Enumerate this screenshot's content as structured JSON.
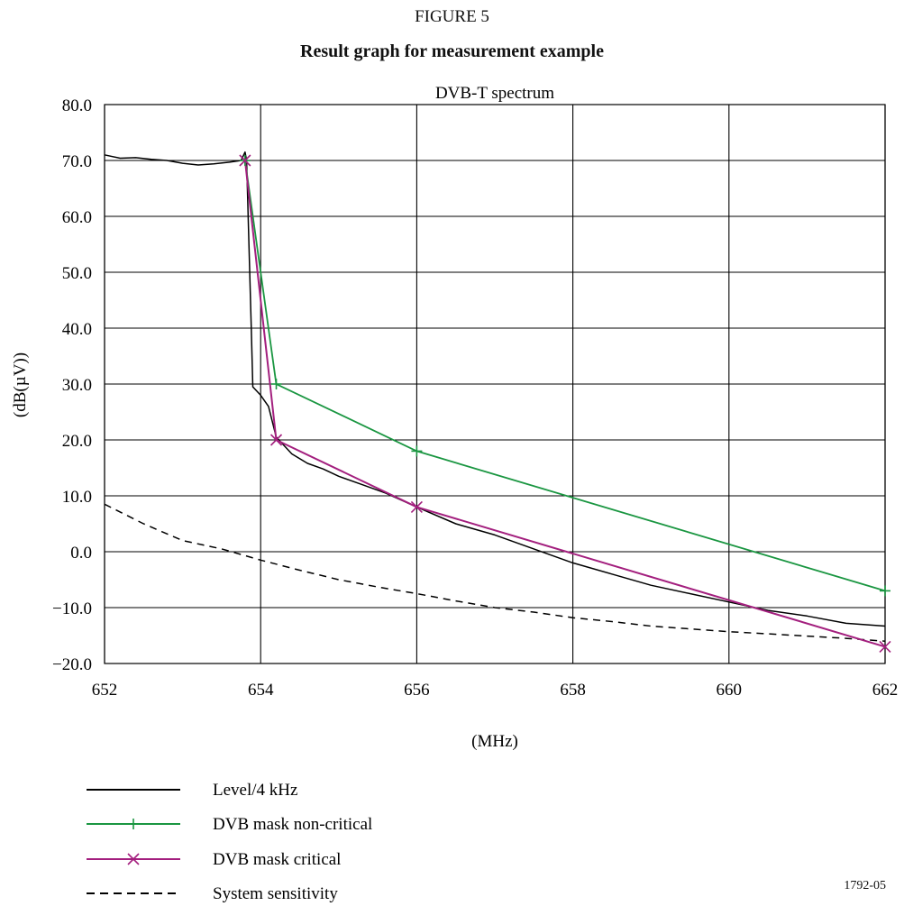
{
  "figure": {
    "label": "FIGURE 5",
    "title": "Result graph for measurement example",
    "code": "1792-05"
  },
  "chart_data": {
    "type": "line",
    "title": "DVB-T spectrum",
    "xlabel": "(MHz)",
    "ylabel": "(dB(µV))",
    "xlim": [
      652,
      662
    ],
    "ylim": [
      -20,
      80
    ],
    "xticks": [
      652,
      654,
      656,
      658,
      660,
      662
    ],
    "xtick_labels": [
      "652",
      "654",
      "656",
      "658",
      "660",
      "662"
    ],
    "yticks": [
      80,
      70,
      60,
      50,
      40,
      30,
      20,
      10,
      0,
      -10,
      -20
    ],
    "ytick_labels": [
      "80.0",
      "70.0",
      "60.0",
      "50.0",
      "40.0",
      "30.0",
      "20.0",
      "10.0",
      "0.0",
      "−10.0",
      "−20.0"
    ],
    "grid": true,
    "legend_position": "bottom-left",
    "series": [
      {
        "name": "Level/4 kHz",
        "color": "#000000",
        "style": "solid",
        "marker": "none",
        "x": [
          652.0,
          652.2,
          652.4,
          652.6,
          652.8,
          653.0,
          653.2,
          653.4,
          653.6,
          653.75,
          653.8,
          653.82,
          653.85,
          653.88,
          653.9,
          654.0,
          654.1,
          654.2,
          654.4,
          654.6,
          654.8,
          655.0,
          655.3,
          655.6,
          656.0,
          656.5,
          657.0,
          657.5,
          658.0,
          658.5,
          659.0,
          659.5,
          660.0,
          660.5,
          661.0,
          661.5,
          662.0
        ],
        "y": [
          71.0,
          70.4,
          70.5,
          70.2,
          70.0,
          69.5,
          69.2,
          69.4,
          69.7,
          70.0,
          71.5,
          70.0,
          55.0,
          40.0,
          29.5,
          28.0,
          26.0,
          20.5,
          17.5,
          15.8,
          14.8,
          13.5,
          12.0,
          10.5,
          8.0,
          5.0,
          3.0,
          0.5,
          -2.0,
          -4.0,
          -6.0,
          -7.5,
          -9.0,
          -10.5,
          -11.5,
          -12.8,
          -13.3
        ]
      },
      {
        "name": "DVB mask non-critical",
        "color": "#1a9641",
        "style": "solid",
        "marker": "plus",
        "x": [
          653.8,
          654.2,
          656.0,
          662.0
        ],
        "y": [
          70.0,
          30.0,
          18.0,
          -7.0
        ]
      },
      {
        "name": "DVB mask critical",
        "color": "#a31f7e",
        "style": "solid",
        "marker": "x",
        "x": [
          653.8,
          654.2,
          656.0,
          662.0
        ],
        "y": [
          70.0,
          20.0,
          8.0,
          -17.0
        ]
      },
      {
        "name": "System sensitivity",
        "color": "#000000",
        "style": "dashed",
        "marker": "none",
        "x": [
          652.0,
          652.5,
          653.0,
          653.5,
          654.0,
          654.5,
          655.0,
          655.5,
          656.0,
          656.5,
          657.0,
          657.5,
          658.0,
          658.5,
          659.0,
          659.5,
          660.0,
          660.5,
          661.0,
          661.5,
          662.0
        ],
        "y": [
          8.5,
          5.0,
          2.0,
          0.5,
          -1.5,
          -3.3,
          -5.0,
          -6.3,
          -7.5,
          -8.8,
          -10.0,
          -10.8,
          -11.8,
          -12.5,
          -13.3,
          -13.8,
          -14.3,
          -14.7,
          -15.1,
          -15.5,
          -16.0
        ]
      }
    ]
  }
}
